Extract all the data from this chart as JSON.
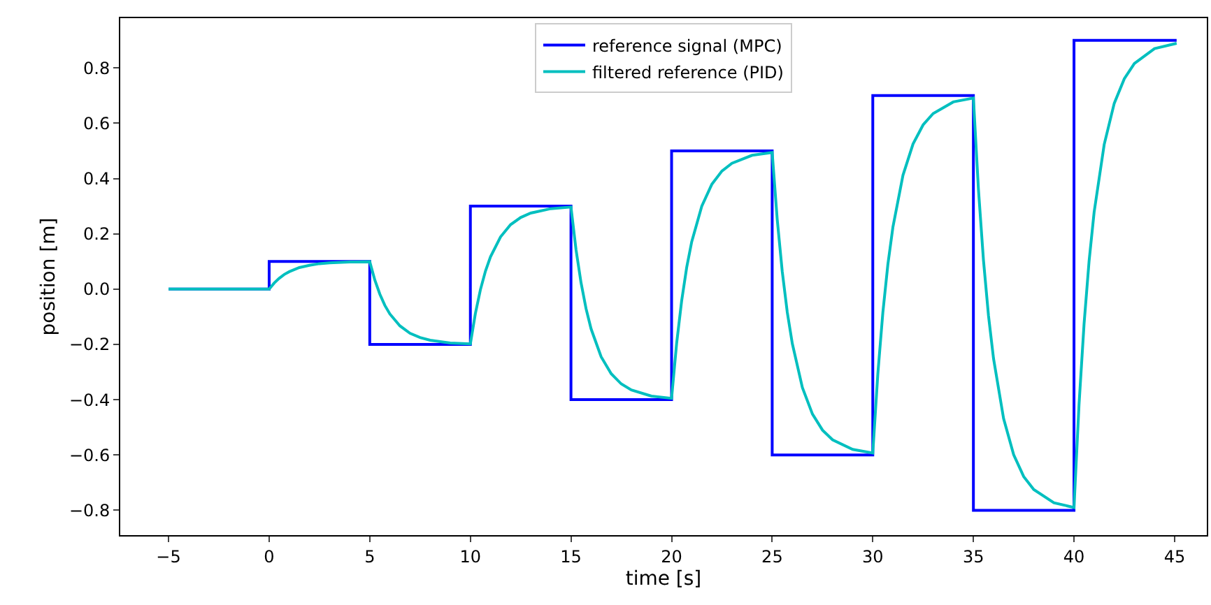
{
  "chart_data": {
    "type": "line",
    "xlabel": "time [s]",
    "ylabel": "position [m]",
    "xlim": [
      -7.4,
      46.6
    ],
    "ylim": [
      -0.89,
      0.98
    ],
    "xticks": [
      {
        "value": -5,
        "label": "−5"
      },
      0,
      5,
      10,
      15,
      20,
      25,
      30,
      35,
      40,
      45
    ],
    "yticks": [
      {
        "value": -0.8,
        "label": "−0.8"
      },
      {
        "value": -0.6,
        "label": "−0.6"
      },
      {
        "value": -0.4,
        "label": "−0.4"
      },
      {
        "value": -0.2,
        "label": "−0.2"
      },
      {
        "value": 0,
        "label": "0.0"
      },
      {
        "value": 0.2,
        "label": "0.2"
      },
      {
        "value": 0.4,
        "label": "0.4"
      },
      {
        "value": 0.6,
        "label": "0.6"
      },
      {
        "value": 0.8,
        "label": "0.8"
      }
    ],
    "grid": false,
    "legend": "top",
    "marker": "none",
    "line_style": "solid",
    "series": [
      {
        "name": "reference signal (MPC)",
        "type": "step",
        "color": "#0000ff",
        "x": [
          -5,
          0,
          5,
          10,
          15,
          20,
          25,
          30,
          35,
          40,
          45.1
        ],
        "values": [
          0,
          0.1,
          -0.2,
          0.3,
          -0.4,
          0.5,
          -0.6,
          0.7,
          -0.8,
          0.9,
          0.9
        ]
      },
      {
        "name": "filtered reference (PID)",
        "color": "#00bfbf",
        "x": [
          -5,
          0,
          0.25,
          0.5,
          0.75,
          1,
          1.5,
          2,
          2.5,
          3,
          4,
          5,
          5.25,
          5.5,
          5.75,
          6,
          6.5,
          7,
          7.5,
          8,
          9,
          10,
          10.25,
          10.5,
          10.75,
          11,
          11.5,
          12,
          12.5,
          13,
          14,
          15,
          15.25,
          15.5,
          15.75,
          16,
          16.5,
          17,
          17.5,
          18,
          19,
          20,
          20.25,
          20.5,
          20.75,
          21,
          21.5,
          22,
          22.5,
          23,
          24,
          25,
          25.25,
          25.5,
          25.75,
          26,
          26.5,
          27,
          27.5,
          28,
          29,
          30,
          30.25,
          30.5,
          30.75,
          31,
          31.5,
          32,
          32.5,
          33,
          34,
          35,
          35.25,
          35.5,
          35.75,
          36,
          36.5,
          37,
          37.5,
          38,
          39,
          40,
          40.25,
          40.5,
          40.75,
          41,
          41.5,
          42,
          42.5,
          43,
          44,
          45.1
        ],
        "values": [
          0,
          0,
          0.022,
          0.039,
          0.053,
          0.063,
          0.078,
          0.086,
          0.092,
          0.095,
          0.098,
          0.099,
          0.033,
          -0.018,
          -0.059,
          -0.09,
          -0.133,
          -0.16,
          -0.175,
          -0.185,
          -0.195,
          -0.198,
          -0.088,
          -0.002,
          0.065,
          0.117,
          0.189,
          0.233,
          0.259,
          0.275,
          0.291,
          0.297,
          0.143,
          0.023,
          -0.071,
          -0.144,
          -0.245,
          -0.306,
          -0.343,
          -0.365,
          -0.387,
          -0.395,
          -0.197,
          -0.043,
          0.078,
          0.171,
          0.3,
          0.379,
          0.427,
          0.455,
          0.484,
          0.494,
          0.252,
          0.064,
          -0.084,
          -0.197,
          -0.356,
          -0.452,
          -0.51,
          -0.545,
          -0.58,
          -0.593,
          -0.307,
          -0.085,
          0.09,
          0.224,
          0.412,
          0.525,
          0.594,
          0.635,
          0.677,
          0.691,
          0.361,
          0.105,
          -0.096,
          -0.251,
          -0.468,
          -0.599,
          -0.678,
          -0.725,
          -0.773,
          -0.79,
          -0.417,
          -0.126,
          0.102,
          0.278,
          0.523,
          0.672,
          0.761,
          0.816,
          0.87,
          0.889
        ]
      }
    ]
  }
}
